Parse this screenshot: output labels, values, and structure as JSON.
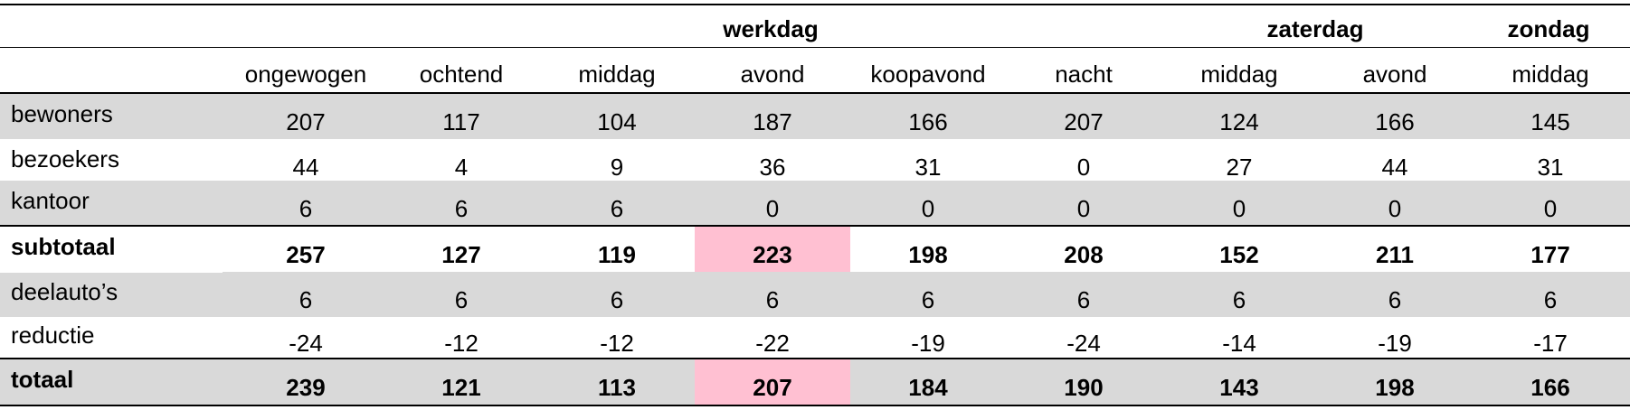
{
  "table": {
    "groups": {
      "werkdag": "werkdag",
      "zaterdag": "zaterdag",
      "zondag": "zondag"
    },
    "columns": [
      "ongewogen",
      "ochtend",
      "middag",
      "avond",
      "koopavond",
      "nacht",
      "middag",
      "avond",
      "middag"
    ],
    "rows": [
      {
        "label": "bewoners",
        "values": [
          "207",
          "117",
          "104",
          "187",
          "166",
          "207",
          "124",
          "166",
          "145"
        ]
      },
      {
        "label": "bezoekers",
        "values": [
          "44",
          "4",
          "9",
          "36",
          "31",
          "0",
          "27",
          "44",
          "31"
        ]
      },
      {
        "label": "kantoor",
        "values": [
          "6",
          "6",
          "6",
          "0",
          "0",
          "0",
          "0",
          "0",
          "0"
        ]
      },
      {
        "label": "subtotaal",
        "values": [
          "257",
          "127",
          "119",
          "223",
          "198",
          "208",
          "152",
          "211",
          "177"
        ]
      },
      {
        "label": "deelauto’s",
        "values": [
          "6",
          "6",
          "6",
          "6",
          "6",
          "6",
          "6",
          "6",
          "6"
        ]
      },
      {
        "label": "reductie",
        "values": [
          "-24",
          "-12",
          "-12",
          "-22",
          "-19",
          "-24",
          "-14",
          "-19",
          "-17"
        ]
      },
      {
        "label": "totaal",
        "values": [
          "239",
          "121",
          "113",
          "207",
          "184",
          "190",
          "143",
          "198",
          "166"
        ]
      }
    ],
    "highlight_color": "#ffc0d2",
    "row_shading_color": "#d9d9d9"
  }
}
